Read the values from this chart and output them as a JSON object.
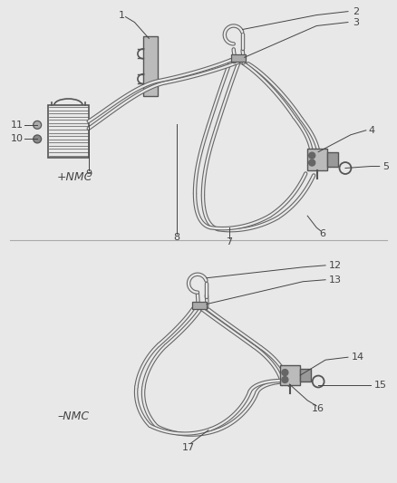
{
  "bg_color": "#e8e8e8",
  "line_color": "#555555",
  "label_color": "#444444",
  "diagram1_label": "+NMC",
  "diagram2_label": "–NMC",
  "figsize": [
    4.38,
    5.33
  ],
  "dpi": 100,
  "tube_outer_lw": 3.2,
  "tube_inner_lw": 1.6,
  "tube_outer_color": "#666666",
  "tube_inner_color": "#e8e8e8",
  "label_fs": 8.0,
  "label_line_lw": 0.7
}
